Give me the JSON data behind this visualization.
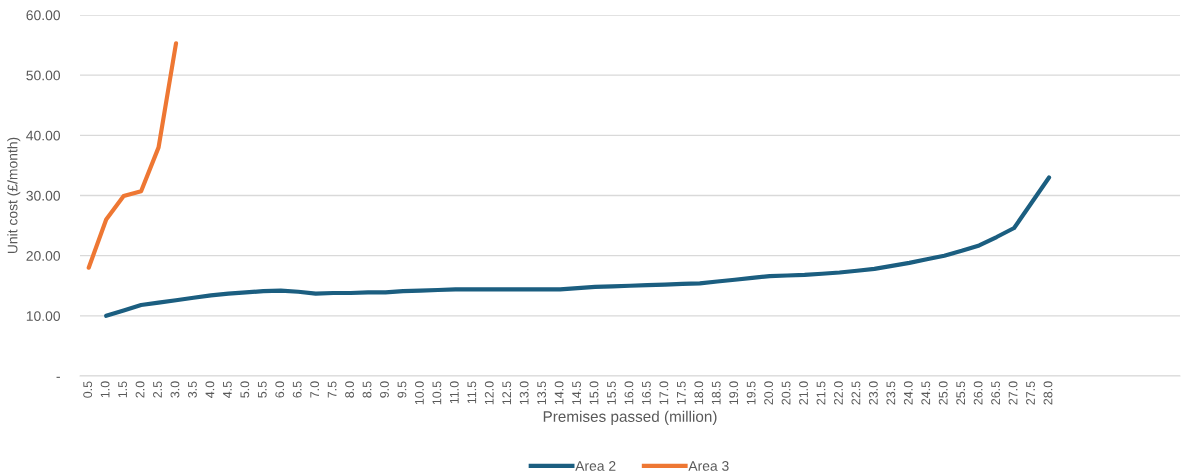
{
  "chart_data": {
    "type": "line",
    "xlabel": "Premises passed (million)",
    "ylabel": "Unit cost (£/month)",
    "categories": [
      "0.5",
      "1.0",
      "1.5",
      "2.0",
      "2.5",
      "3.0",
      "3.5",
      "4.0",
      "4.5",
      "5.0",
      "5.5",
      "6.0",
      "6.5",
      "7.0",
      "7.5",
      "8.0",
      "8.5",
      "9.0",
      "9.5",
      "10.0",
      "10.5",
      "11.0",
      "11.5",
      "12.0",
      "12.5",
      "13.0",
      "13.5",
      "14.0",
      "14.5",
      "15.0",
      "15.5",
      "16.0",
      "16.5",
      "17.0",
      "17.5",
      "18.0",
      "18.5",
      "19.0",
      "19.5",
      "20.0",
      "20.5",
      "21.0",
      "21.5",
      "22.0",
      "22.5",
      "23.0",
      "23.5",
      "24.0",
      "24.5",
      "25.0",
      "25.5",
      "26.0",
      "26.5",
      "27.0",
      "27.5",
      "28.0",
      null,
      null,
      null,
      null,
      null,
      null,
      null
    ],
    "series": [
      {
        "name": "Area 2",
        "color": "#1b5e80",
        "values": [
          null,
          10.0,
          10.9,
          11.8,
          12.2,
          12.6,
          13.0,
          13.4,
          13.7,
          13.9,
          14.1,
          14.2,
          14.0,
          13.7,
          13.8,
          13.8,
          13.9,
          13.9,
          14.1,
          14.2,
          14.3,
          14.4,
          14.4,
          14.4,
          14.4,
          14.4,
          14.4,
          14.4,
          14.6,
          14.8,
          14.9,
          15.0,
          15.1,
          15.2,
          15.3,
          15.4,
          15.7,
          16.0,
          16.3,
          16.6,
          16.7,
          16.8,
          17.0,
          17.2,
          17.5,
          17.8,
          18.3,
          18.8,
          19.4,
          20.0,
          20.8,
          21.7,
          23.1,
          24.6,
          28.8,
          33.0,
          null,
          null,
          null,
          null,
          null,
          null,
          null
        ]
      },
      {
        "name": "Area 3",
        "color": "#ee7733",
        "values": [
          18.0,
          26.0,
          29.9,
          30.7,
          38.0,
          55.3,
          null,
          null,
          null,
          null,
          null,
          null,
          null,
          null,
          null,
          null,
          null,
          null,
          null,
          null,
          null,
          null,
          null,
          null,
          null,
          null,
          null,
          null,
          null,
          null,
          null,
          null,
          null,
          null,
          null,
          null,
          null,
          null,
          null,
          null,
          null,
          null,
          null,
          null,
          null,
          null,
          null,
          null,
          null,
          null,
          null,
          null,
          null,
          null,
          null,
          null,
          null,
          null,
          null,
          null,
          null,
          null,
          null
        ]
      }
    ],
    "ylim": [
      0,
      60
    ],
    "yticks": [
      {
        "value": 0,
        "label": "-"
      },
      {
        "value": 10,
        "label": "10.00"
      },
      {
        "value": 20,
        "label": "20.00"
      },
      {
        "value": 30,
        "label": "30.00"
      },
      {
        "value": 40,
        "label": "40.00"
      },
      {
        "value": 50,
        "label": "50.00"
      },
      {
        "value": 60,
        "label": "60.00"
      }
    ],
    "grid": "y",
    "legend": "bottom",
    "marker": "none",
    "line_style": "solid"
  }
}
